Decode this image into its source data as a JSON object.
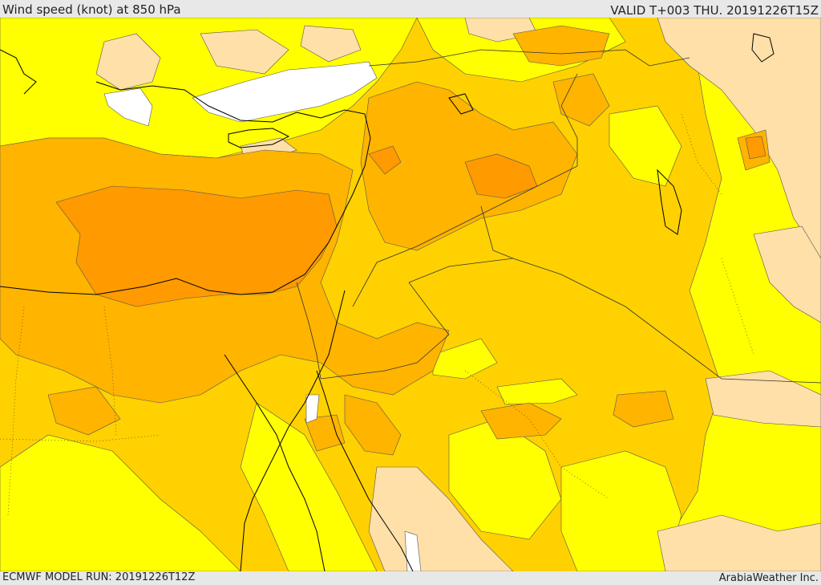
{
  "header": {
    "title": "Wind speed (knot) at 850 hPa",
    "valid": "VALID T+003 THU. 20191226T15Z"
  },
  "footer": {
    "model_run": "ECMWF MODEL RUN: 20191226T12Z",
    "credit": "ArabiaWeather Inc."
  },
  "map": {
    "colors": {
      "calm": "#ffffff",
      "very_light": "#ffe0a8",
      "light": "#ffff00",
      "moderate": "#ffd100",
      "fresh": "#ffb400",
      "strong": "#ff9a00",
      "coastline": "#000000",
      "border": "#333333",
      "contour": "#555555"
    }
  }
}
